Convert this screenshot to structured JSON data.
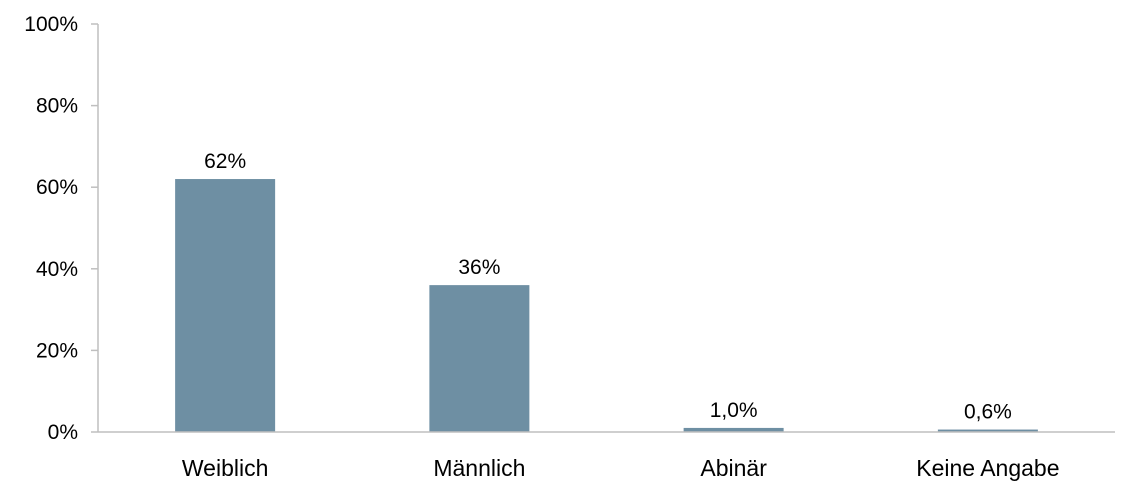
{
  "chart_data": {
    "type": "bar",
    "categories": [
      "Weiblich",
      "Männlich",
      "Abinär",
      "Keine Angabe"
    ],
    "values": [
      62,
      36,
      1.0,
      0.6
    ],
    "data_labels": [
      "62%",
      "36%",
      "1,0%",
      "0,6%"
    ],
    "ylim": [
      0,
      100
    ],
    "yticks": [
      0,
      20,
      40,
      60,
      80,
      100
    ],
    "ytick_labels": [
      "0%",
      "20%",
      "40%",
      "60%",
      "80%",
      "100%"
    ],
    "grid": false,
    "legend": "none",
    "bar_color": "#6E8FA3",
    "axis_color": "#BFBFBF"
  }
}
